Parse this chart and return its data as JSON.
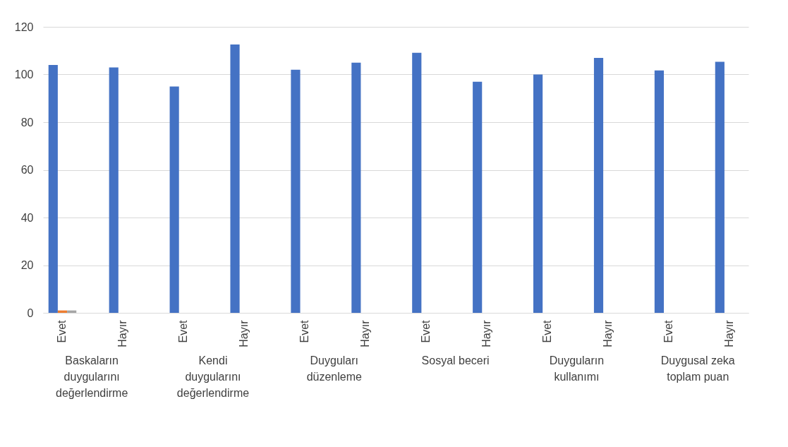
{
  "chart_data": {
    "type": "bar",
    "categories": [
      "Evet",
      "Hayır",
      "Evet",
      "Hayır",
      "Evet",
      "Hayır",
      "Evet",
      "Hayır",
      "Evet",
      "Hayır",
      "Evet",
      "Hayır"
    ],
    "series": [
      {
        "color": "#4472c4",
        "values": [
          104,
          103,
          95,
          112.6,
          102,
          105,
          109.1,
          97,
          100,
          107,
          101.7,
          105.3
        ]
      },
      {
        "color": "#ed7d31",
        "values": [
          1,
          null,
          null,
          null,
          null,
          null,
          null,
          null,
          null,
          null,
          null,
          null
        ]
      },
      {
        "color": "#a5a5a5",
        "values": [
          1,
          null,
          null,
          null,
          null,
          null,
          null,
          null,
          null,
          null,
          null,
          null
        ]
      }
    ],
    "annotations": [
      "Baskaların duygularını değerlendirme",
      "Kendi duygularını değerlendirme",
      "Duyguları düzenleme",
      "Sosyal beceri",
      "Duyguların kullanımı",
      "Duygusal zeka toplam puan"
    ],
    "ylim": [
      0,
      120
    ],
    "yticks": [
      0,
      20,
      40,
      60,
      80,
      100,
      120
    ],
    "grid": "y",
    "legend": false
  }
}
